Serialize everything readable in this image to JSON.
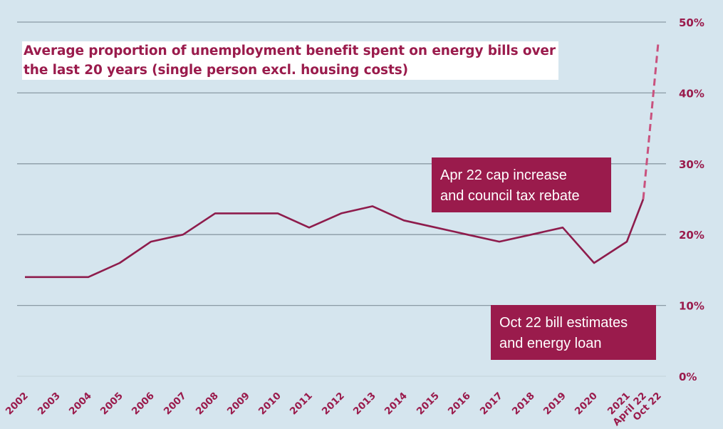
{
  "title_lines": [
    "Average proportion of unemployment benefit spent on energy bills over",
    "the last 20 years (single person excl. housing costs)"
  ],
  "annotations": {
    "apr22": [
      "Apr 22 cap increase",
      "and council tax rebate"
    ],
    "oct22": [
      "Oct 22 bill estimates",
      "and energy loan"
    ]
  },
  "colors": {
    "background": "#d5e5ee",
    "line": "#8e1c4c",
    "dashed_line": "#c9527e",
    "grid": "#8a9aa4",
    "label_box": "#9a1b4c"
  },
  "chart_data": {
    "type": "line",
    "title": "Average proportion of unemployment benefit spent on energy bills over the last 20 years (single person excl. housing costs)",
    "categories": [
      "2002",
      "2003",
      "2004",
      "2005",
      "2006",
      "2007",
      "2008",
      "2009",
      "2010",
      "2011",
      "2012",
      "2013",
      "2014",
      "2015",
      "2016",
      "2017",
      "2018",
      "2019",
      "2020",
      "2021",
      "April 22",
      "Oct 22"
    ],
    "series": [
      {
        "values": [
          14,
          14,
          14,
          16,
          19,
          20,
          23,
          23,
          23,
          21,
          23,
          24,
          22,
          21,
          20,
          19,
          20,
          21,
          16,
          19,
          25,
          null
        ],
        "style": "solid"
      },
      {
        "values": [
          null,
          null,
          null,
          null,
          null,
          null,
          null,
          null,
          null,
          null,
          null,
          null,
          null,
          null,
          null,
          null,
          null,
          null,
          null,
          null,
          25,
          47
        ],
        "style": "dashed"
      }
    ],
    "y_ticks": [
      "0%",
      "10%",
      "20%",
      "30%",
      "40%",
      "50%"
    ],
    "ylim": [
      0,
      50
    ],
    "y_axis_side": "right",
    "grid": "horizontal"
  }
}
